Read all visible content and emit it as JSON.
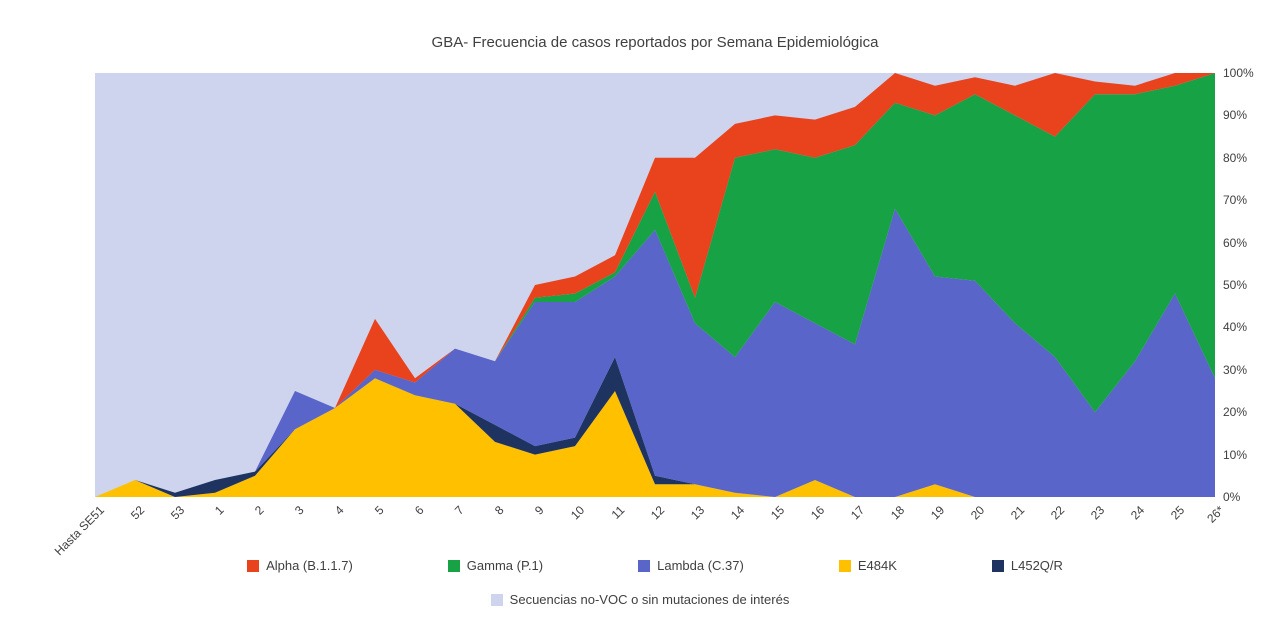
{
  "chart": {
    "title": "GBA- Frecuencia de casos reportados por Semana Epidemiológica"
  },
  "chart_data": {
    "type": "area",
    "stacked": true,
    "percent": true,
    "title": "GBA- Frecuencia de casos reportados por Semana Epidemiológica",
    "ylim": [
      0,
      100
    ],
    "y_ticks": [
      "0%",
      "10%",
      "20%",
      "30%",
      "40%",
      "50%",
      "60%",
      "70%",
      "80%",
      "90%",
      "100%"
    ],
    "y_axis_side": "right",
    "x_label_rotation": 45,
    "grid": false,
    "legend_position": "bottom",
    "categories": [
      "Hasta SE51",
      "52",
      "53",
      "1",
      "2",
      "3",
      "4",
      "5",
      "6",
      "7",
      "8",
      "9",
      "10",
      "11",
      "12",
      "13",
      "14",
      "15",
      "16",
      "17",
      "18",
      "19",
      "20",
      "21",
      "22",
      "23",
      "24",
      "25",
      "26*"
    ],
    "series": [
      {
        "id": "e484k",
        "name": "E484K",
        "color": "#FFC000",
        "values": [
          0,
          4,
          0,
          1,
          5,
          16,
          21,
          28,
          24,
          22,
          13,
          10,
          12,
          25,
          3,
          3,
          1,
          0,
          4,
          0,
          0,
          3,
          0,
          0,
          0,
          0,
          0,
          0,
          0
        ]
      },
      {
        "id": "l452qr",
        "name": "L452Q/R",
        "color": "#1F3361",
        "values": [
          0,
          0,
          1,
          3,
          1,
          0,
          0,
          0,
          0,
          0,
          4,
          2,
          2,
          8,
          2,
          0,
          0,
          0,
          0,
          0,
          0,
          0,
          0,
          0,
          0,
          0,
          0,
          0,
          0
        ]
      },
      {
        "id": "lambda",
        "name": "Lambda (C.37)",
        "color": "#5965C8",
        "values": [
          0,
          0,
          0,
          0,
          0,
          9,
          0,
          2,
          3,
          13,
          15,
          34,
          32,
          19,
          58,
          38,
          32,
          46,
          37,
          36,
          68,
          49,
          51,
          41,
          33,
          20,
          32,
          48,
          28
        ]
      },
      {
        "id": "gamma",
        "name": "Gamma (P.1)",
        "color": "#17A345",
        "values": [
          0,
          0,
          0,
          0,
          0,
          0,
          0,
          0,
          0,
          0,
          0,
          1,
          2,
          1,
          9,
          6,
          47,
          36,
          39,
          47,
          25,
          38,
          44,
          49,
          52,
          75,
          63,
          49,
          72
        ]
      },
      {
        "id": "alpha",
        "name": "Alpha (B.1.1.7)",
        "color": "#E8431D",
        "values": [
          0,
          0,
          0,
          0,
          0,
          0,
          0,
          12,
          1,
          0,
          0,
          3,
          4,
          4,
          8,
          33,
          8,
          8,
          9,
          9,
          7,
          7,
          4,
          7,
          15,
          3,
          2,
          3,
          0
        ]
      }
    ],
    "background_series": {
      "id": "no-voc",
      "name": "Secuencias no-VOC o sin mutaciones de interés",
      "color": "#CED4ED"
    },
    "legend": [
      {
        "id": "alpha",
        "label": "Alpha (B.1.1.7)",
        "color": "#E8431D"
      },
      {
        "id": "gamma",
        "label": "Gamma (P.1)",
        "color": "#17A345"
      },
      {
        "id": "lambda",
        "label": "Lambda (C.37)",
        "color": "#5965C8"
      },
      {
        "id": "e484k",
        "label": "E484K",
        "color": "#FFC000"
      },
      {
        "id": "l452qr",
        "label": "L452Q/R",
        "color": "#1F3361"
      }
    ],
    "legend_row2": [
      {
        "id": "no-voc",
        "label": "Secuencias no-VOC o sin mutaciones de interés",
        "color": "#CED4ED"
      }
    ]
  }
}
